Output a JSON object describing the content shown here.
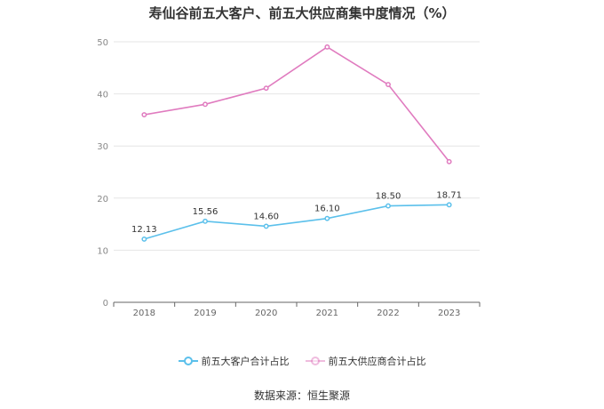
{
  "chart_data": {
    "type": "line",
    "title": "寿仙谷前五大客户、前五大供应商集中度情况（%）",
    "categories": [
      "2018",
      "2019",
      "2020",
      "2021",
      "2022",
      "2023"
    ],
    "ylim": [
      0,
      50
    ],
    "yticks": [
      0,
      10,
      20,
      30,
      40,
      50
    ],
    "grid": true,
    "legend_position": "bottom-center",
    "series": [
      {
        "name": "前五大客户合计占比",
        "color": "#5bc0eb",
        "values": [
          12.13,
          15.56,
          14.6,
          16.1,
          18.5,
          18.71
        ],
        "labels": [
          "12.13",
          "15.56",
          "14.60",
          "16.10",
          "18.50",
          "18.71"
        ]
      },
      {
        "name": "前五大供应商合计占比",
        "color": "#e07bbf",
        "values": [
          36.0,
          38.0,
          41.1,
          49.0,
          41.8,
          27.0
        ],
        "labels": []
      }
    ]
  },
  "source_text": "数据来源：恒生聚源"
}
